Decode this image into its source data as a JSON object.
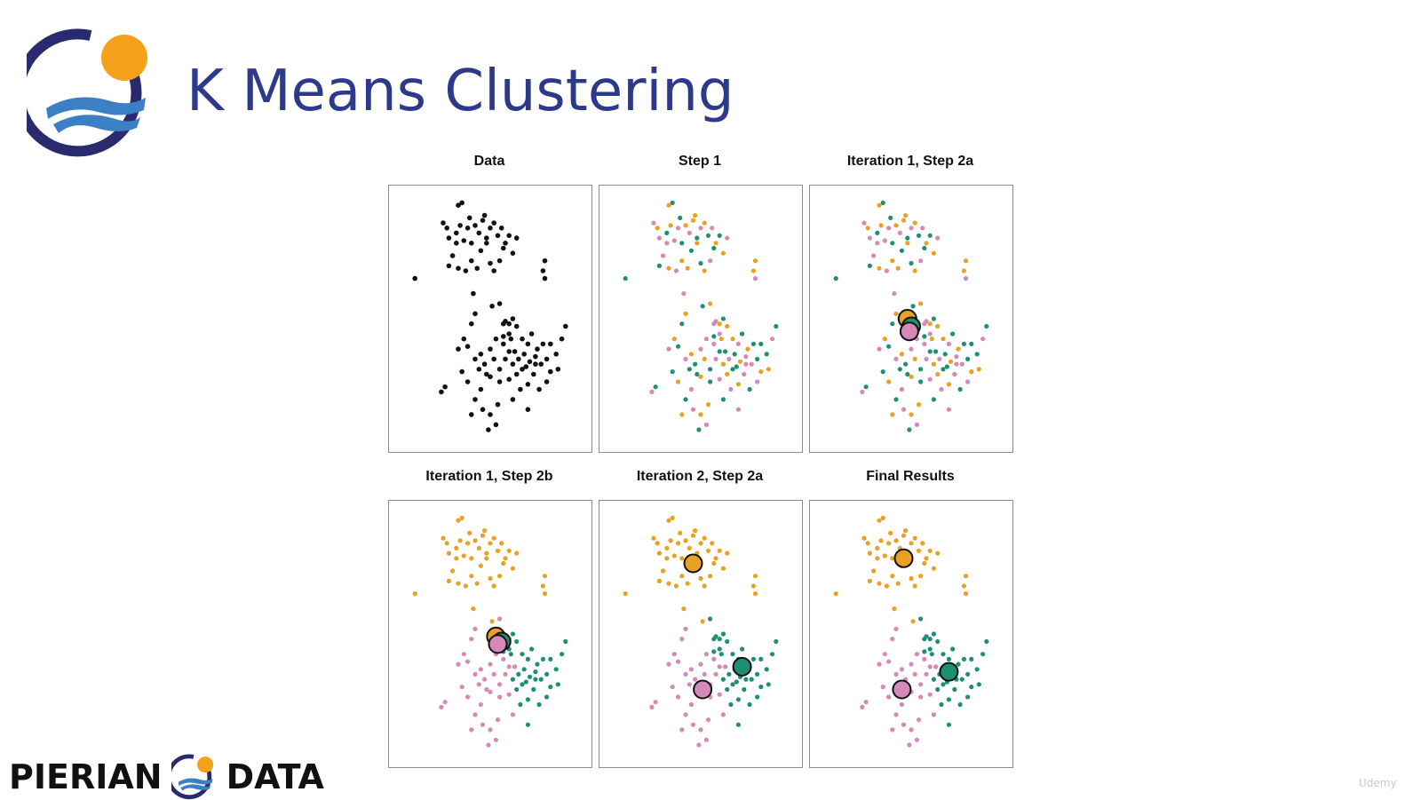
{
  "slide": {
    "title": "K Means Clustering"
  },
  "brand": {
    "left_word": "PIERIAN",
    "right_word": "DATA"
  },
  "watermark": {
    "text": "Udemy"
  },
  "colors": {
    "title": "#2d3a8c",
    "logo_ring": "#2a2a6e",
    "logo_sun": "#f5a11b",
    "logo_wave": "#3b7fc4",
    "unassigned": "#111111",
    "cluster_orange": "#e9a023",
    "cluster_pink": "#d589b8",
    "cluster_teal": "#1f8f73"
  },
  "chart_data": [
    {
      "type": "scatter",
      "title": "Data",
      "step": "data"
    },
    {
      "type": "scatter",
      "title": "Step 1",
      "step": "random"
    },
    {
      "type": "scatter",
      "title": "Iteration 1, Step 2a",
      "step": "random",
      "centroids": [
        {
          "cluster": "orange",
          "x": 0.48,
          "y": 0.5
        },
        {
          "cluster": "teal",
          "x": 0.5,
          "y": 0.53
        },
        {
          "cluster": "pink",
          "x": 0.49,
          "y": 0.55
        }
      ]
    },
    {
      "type": "scatter",
      "title": "Iteration 1, Step 2b",
      "step": "partial",
      "centroids": [
        {
          "cluster": "orange",
          "x": 0.53,
          "y": 0.51
        },
        {
          "cluster": "teal",
          "x": 0.56,
          "y": 0.53
        },
        {
          "cluster": "pink",
          "x": 0.54,
          "y": 0.54
        }
      ]
    },
    {
      "type": "scatter",
      "title": "Iteration 2, Step 2a",
      "step": "final",
      "centroids": [
        {
          "cluster": "orange",
          "x": 0.46,
          "y": 0.22
        },
        {
          "cluster": "teal",
          "x": 0.72,
          "y": 0.63
        },
        {
          "cluster": "pink",
          "x": 0.51,
          "y": 0.72
        }
      ]
    },
    {
      "type": "scatter",
      "title": "Final Results",
      "step": "final",
      "centroids": [
        {
          "cluster": "orange",
          "x": 0.46,
          "y": 0.2
        },
        {
          "cluster": "teal",
          "x": 0.7,
          "y": 0.65
        },
        {
          "cluster": "pink",
          "x": 0.45,
          "y": 0.72
        }
      ]
    }
  ],
  "points": [
    [
      0.33,
      0.05
    ],
    [
      0.35,
      0.04
    ],
    [
      0.25,
      0.12
    ],
    [
      0.27,
      0.14
    ],
    [
      0.28,
      0.18
    ],
    [
      0.32,
      0.16
    ],
    [
      0.34,
      0.13
    ],
    [
      0.36,
      0.19
    ],
    [
      0.39,
      0.1
    ],
    [
      0.42,
      0.13
    ],
    [
      0.44,
      0.16
    ],
    [
      0.46,
      0.11
    ],
    [
      0.48,
      0.18
    ],
    [
      0.5,
      0.14
    ],
    [
      0.52,
      0.12
    ],
    [
      0.54,
      0.17
    ],
    [
      0.56,
      0.14
    ],
    [
      0.58,
      0.2
    ],
    [
      0.6,
      0.17
    ],
    [
      0.62,
      0.24
    ],
    [
      0.64,
      0.18
    ],
    [
      0.45,
      0.23
    ],
    [
      0.4,
      0.27
    ],
    [
      0.3,
      0.25
    ],
    [
      0.28,
      0.29
    ],
    [
      0.33,
      0.3
    ],
    [
      0.37,
      0.31
    ],
    [
      0.43,
      0.3
    ],
    [
      0.5,
      0.28
    ],
    [
      0.55,
      0.27
    ],
    [
      0.52,
      0.31
    ],
    [
      0.48,
      0.2
    ],
    [
      0.4,
      0.2
    ],
    [
      0.38,
      0.14
    ],
    [
      0.47,
      0.09
    ],
    [
      0.57,
      0.22
    ],
    [
      0.32,
      0.2
    ],
    [
      0.1,
      0.34
    ],
    [
      0.79,
      0.27
    ],
    [
      0.78,
      0.31
    ],
    [
      0.79,
      0.34
    ],
    [
      0.41,
      0.4
    ],
    [
      0.51,
      0.45
    ],
    [
      0.55,
      0.44
    ],
    [
      0.58,
      0.51
    ],
    [
      0.57,
      0.52
    ],
    [
      0.6,
      0.52
    ],
    [
      0.62,
      0.5
    ],
    [
      0.6,
      0.56
    ],
    [
      0.57,
      0.57
    ],
    [
      0.64,
      0.53
    ],
    [
      0.53,
      0.58
    ],
    [
      0.42,
      0.48
    ],
    [
      0.4,
      0.52
    ],
    [
      0.36,
      0.58
    ],
    [
      0.33,
      0.62
    ],
    [
      0.38,
      0.61
    ],
    [
      0.42,
      0.66
    ],
    [
      0.45,
      0.64
    ],
    [
      0.47,
      0.68
    ],
    [
      0.5,
      0.62
    ],
    [
      0.52,
      0.66
    ],
    [
      0.55,
      0.7
    ],
    [
      0.57,
      0.6
    ],
    [
      0.6,
      0.63
    ],
    [
      0.62,
      0.68
    ],
    [
      0.65,
      0.66
    ],
    [
      0.67,
      0.7
    ],
    [
      0.64,
      0.72
    ],
    [
      0.68,
      0.64
    ],
    [
      0.7,
      0.6
    ],
    [
      0.72,
      0.56
    ],
    [
      0.75,
      0.62
    ],
    [
      0.77,
      0.68
    ],
    [
      0.8,
      0.66
    ],
    [
      0.82,
      0.71
    ],
    [
      0.85,
      0.64
    ],
    [
      0.88,
      0.58
    ],
    [
      0.9,
      0.53
    ],
    [
      0.73,
      0.72
    ],
    [
      0.7,
      0.76
    ],
    [
      0.76,
      0.78
    ],
    [
      0.66,
      0.78
    ],
    [
      0.6,
      0.74
    ],
    [
      0.55,
      0.75
    ],
    [
      0.5,
      0.73
    ],
    [
      0.45,
      0.78
    ],
    [
      0.42,
      0.82
    ],
    [
      0.38,
      0.75
    ],
    [
      0.35,
      0.71
    ],
    [
      0.46,
      0.86
    ],
    [
      0.5,
      0.88
    ],
    [
      0.53,
      0.92
    ],
    [
      0.49,
      0.94
    ],
    [
      0.54,
      0.84
    ],
    [
      0.62,
      0.82
    ],
    [
      0.7,
      0.86
    ],
    [
      0.4,
      0.88
    ],
    [
      0.26,
      0.77
    ],
    [
      0.24,
      0.79
    ],
    [
      0.78,
      0.6
    ],
    [
      0.71,
      0.67
    ],
    [
      0.74,
      0.68
    ],
    [
      0.63,
      0.63
    ],
    [
      0.67,
      0.58
    ],
    [
      0.58,
      0.66
    ],
    [
      0.48,
      0.72
    ],
    [
      0.44,
      0.7
    ],
    [
      0.86,
      0.7
    ],
    [
      0.8,
      0.75
    ],
    [
      0.74,
      0.65
    ],
    [
      0.69,
      0.69
    ],
    [
      0.61,
      0.58
    ],
    [
      0.82,
      0.6
    ]
  ],
  "assign_random": [
    0,
    1,
    2,
    0,
    2,
    1,
    0,
    2,
    1,
    0,
    2,
    0,
    1,
    2,
    0,
    1,
    2,
    0,
    1,
    0,
    2,
    1,
    0,
    2,
    1,
    0,
    2,
    0,
    1,
    2,
    0,
    0,
    1,
    2,
    0,
    1,
    2,
    1,
    0,
    0,
    2,
    2,
    1,
    0,
    2,
    2,
    0,
    1,
    2,
    1,
    0,
    2,
    0,
    1,
    0,
    2,
    1,
    2,
    0,
    1,
    2,
    0,
    1,
    2,
    1,
    0,
    2,
    1,
    0,
    1,
    2,
    1,
    0,
    2,
    1,
    0,
    1,
    2,
    1,
    2,
    0,
    1,
    2,
    2,
    1,
    0,
    2,
    1,
    0,
    1,
    2,
    0,
    2,
    1,
    0,
    1,
    2,
    0,
    1,
    2,
    1,
    0,
    2,
    1,
    0,
    2,
    1,
    1,
    0,
    2,
    2,
    1,
    0,
    1
  ],
  "assign_partial": [
    0,
    0,
    0,
    0,
    0,
    0,
    0,
    0,
    0,
    0,
    0,
    0,
    0,
    0,
    0,
    0,
    0,
    0,
    0,
    0,
    0,
    0,
    0,
    0,
    0,
    0,
    0,
    0,
    0,
    0,
    0,
    0,
    0,
    0,
    0,
    0,
    0,
    0,
    0,
    0,
    0,
    0,
    0,
    2,
    2,
    1,
    1,
    1,
    1,
    1,
    1,
    2,
    2,
    2,
    2,
    2,
    2,
    2,
    2,
    2,
    2,
    2,
    2,
    2,
    2,
    1,
    1,
    1,
    1,
    1,
    1,
    1,
    1,
    1,
    1,
    1,
    1,
    1,
    1,
    1,
    1,
    1,
    1,
    2,
    2,
    2,
    2,
    2,
    2,
    2,
    2,
    2,
    2,
    2,
    2,
    2,
    1,
    2,
    2,
    2,
    1,
    1,
    1,
    2,
    1,
    2,
    2,
    2,
    1,
    1,
    1,
    1,
    1,
    1
  ],
  "assign_final": [
    0,
    0,
    0,
    0,
    0,
    0,
    0,
    0,
    0,
    0,
    0,
    0,
    0,
    0,
    0,
    0,
    0,
    0,
    0,
    0,
    0,
    0,
    0,
    0,
    0,
    0,
    0,
    0,
    0,
    0,
    0,
    0,
    0,
    0,
    0,
    0,
    0,
    0,
    0,
    0,
    0,
    0,
    0,
    1,
    1,
    1,
    1,
    1,
    1,
    1,
    1,
    2,
    2,
    2,
    2,
    2,
    2,
    2,
    2,
    2,
    2,
    2,
    2,
    2,
    2,
    1,
    1,
    1,
    1,
    1,
    1,
    1,
    1,
    1,
    1,
    1,
    1,
    1,
    1,
    1,
    1,
    1,
    1,
    2,
    2,
    2,
    2,
    2,
    2,
    2,
    2,
    2,
    2,
    2,
    2,
    2,
    1,
    2,
    2,
    2,
    1,
    1,
    1,
    2,
    1,
    2,
    2,
    2,
    1,
    1,
    1,
    1,
    1,
    1
  ]
}
